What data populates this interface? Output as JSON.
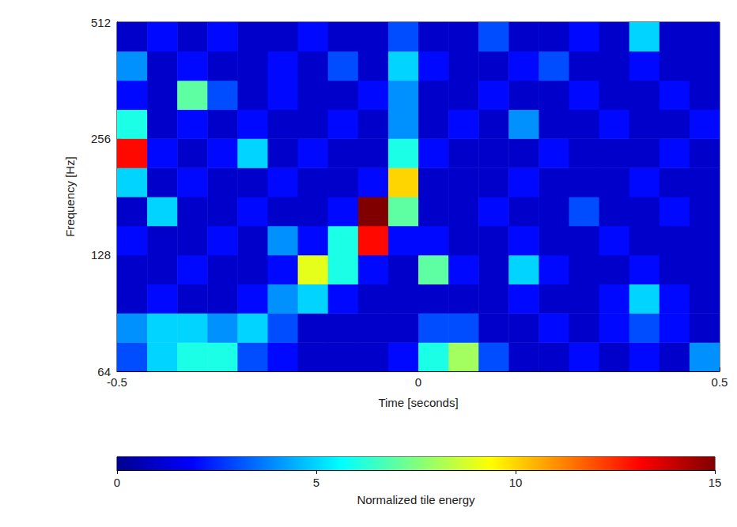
{
  "chart_data": {
    "type": "heatmap",
    "x_label": "Time [seconds]",
    "y_label": "Frequency [Hz]",
    "xlim": [
      -0.5,
      0.5
    ],
    "xticks": [
      -0.5,
      0,
      0.5
    ],
    "ylim": [
      64,
      512
    ],
    "yticks": [
      64,
      128,
      256,
      512
    ],
    "log": "y",
    "x_edges": [
      -0.5,
      -0.45,
      -0.4,
      -0.35,
      -0.3,
      -0.25,
      -0.2,
      -0.15,
      -0.1,
      -0.05,
      0,
      0.05,
      0.1,
      0.15,
      0.2,
      0.25,
      0.3,
      0.35,
      0.4,
      0.45,
      0.5
    ],
    "y_edges": [
      64,
      76.1,
      90.5,
      107.6,
      128,
      152.2,
      181,
      215.3,
      256,
      304.4,
      362,
      430.5,
      512
    ],
    "cells": [
      [
        3,
        5,
        6,
        6,
        3,
        2,
        1,
        1,
        1,
        2,
        6,
        8,
        3,
        1,
        1,
        2,
        1,
        2,
        1,
        4
      ],
      [
        4,
        5,
        5,
        4,
        5,
        3,
        1,
        1,
        1,
        1,
        3,
        3,
        1,
        1,
        2,
        1,
        2,
        3,
        2,
        1
      ],
      [
        1,
        2,
        1,
        1,
        2,
        4,
        5,
        2,
        1,
        1,
        1,
        1,
        1,
        2,
        1,
        1,
        2,
        5,
        2,
        1
      ],
      [
        1,
        1,
        2,
        1,
        1,
        2,
        9,
        6,
        2,
        1,
        7,
        2,
        1,
        5,
        2,
        1,
        1,
        2,
        1,
        1
      ],
      [
        2,
        1,
        1,
        2,
        1,
        4,
        2,
        6,
        13,
        2,
        2,
        1,
        1,
        2,
        1,
        1,
        2,
        1,
        1,
        1
      ],
      [
        1,
        5,
        1,
        1,
        2,
        1,
        1,
        2,
        15,
        7,
        1,
        1,
        2,
        1,
        1,
        3,
        1,
        1,
        2,
        1
      ],
      [
        5,
        1,
        2,
        1,
        1,
        2,
        1,
        1,
        2,
        10,
        1,
        1,
        1,
        2,
        1,
        1,
        1,
        2,
        1,
        1
      ],
      [
        13,
        2,
        1,
        2,
        5,
        1,
        2,
        1,
        1,
        6,
        2,
        1,
        1,
        1,
        2,
        1,
        1,
        1,
        2,
        1
      ],
      [
        6,
        1,
        2,
        1,
        2,
        1,
        1,
        2,
        1,
        4,
        1,
        2,
        1,
        4,
        1,
        1,
        2,
        1,
        1,
        2
      ],
      [
        2,
        1,
        7,
        3,
        1,
        2,
        1,
        1,
        2,
        4,
        1,
        1,
        2,
        1,
        1,
        2,
        1,
        1,
        2,
        1
      ],
      [
        4,
        1,
        2,
        1,
        1,
        2,
        1,
        3,
        1,
        5,
        2,
        1,
        1,
        2,
        3,
        1,
        1,
        2,
        1,
        1
      ],
      [
        1,
        2,
        1,
        2,
        1,
        1,
        2,
        1,
        1,
        3,
        1,
        1,
        3,
        1,
        1,
        2,
        1,
        5,
        1,
        1
      ]
    ],
    "colorbar": {
      "label": "Normalized tile energy",
      "range": [
        0,
        15
      ],
      "ticks": [
        0,
        5,
        10,
        15
      ]
    }
  }
}
